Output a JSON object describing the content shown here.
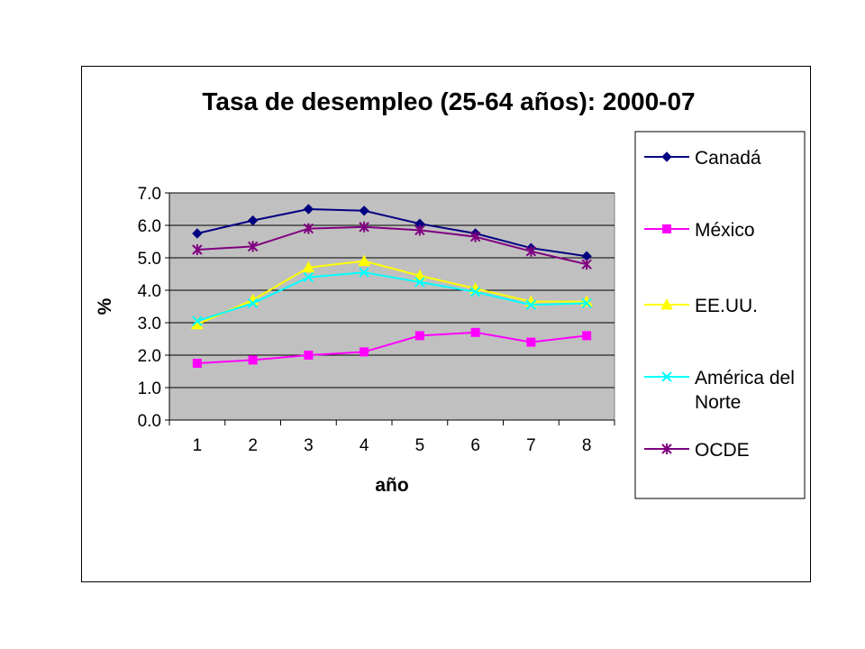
{
  "chart_data": {
    "type": "line",
    "title": "Tasa de desempleo (25-64 años): 2000-07",
    "xlabel": "año",
    "ylabel": "%",
    "x": [
      1,
      2,
      3,
      4,
      5,
      6,
      7,
      8
    ],
    "x_tick_labels": [
      "1",
      "2",
      "3",
      "4",
      "5",
      "6",
      "7",
      "8"
    ],
    "ylim": [
      0,
      7
    ],
    "y_ticks": [
      0,
      1,
      2,
      3,
      4,
      5,
      6,
      7
    ],
    "y_tick_labels": [
      "0.0",
      "1.0",
      "2.0",
      "3.0",
      "4.0",
      "5.0",
      "6.0",
      "7.0"
    ],
    "grid": true,
    "plot_background": "#c0c0c0",
    "legend_position": "right",
    "series": [
      {
        "name": "Canadá",
        "color": "#000080",
        "marker": "diamond",
        "values": [
          5.75,
          6.15,
          6.5,
          6.45,
          6.05,
          5.75,
          5.3,
          5.05
        ]
      },
      {
        "name": "México",
        "color": "#ff00ff",
        "marker": "square",
        "values": [
          1.75,
          1.85,
          2.0,
          2.1,
          2.6,
          2.7,
          2.4,
          2.6
        ]
      },
      {
        "name": "EE.UU.",
        "color": "#ffff00",
        "marker": "triangle",
        "values": [
          2.95,
          3.7,
          4.7,
          4.9,
          4.45,
          4.05,
          3.65,
          3.65
        ]
      },
      {
        "name": "América del Norte",
        "name_lines": [
          "América del",
          "Norte"
        ],
        "color": "#00ffff",
        "marker": "x",
        "values": [
          3.05,
          3.6,
          4.4,
          4.55,
          4.25,
          3.95,
          3.55,
          3.6
        ]
      },
      {
        "name": "OCDE",
        "color": "#800080",
        "marker": "star",
        "values": [
          5.25,
          5.35,
          5.9,
          5.95,
          5.85,
          5.65,
          5.2,
          4.8
        ]
      }
    ]
  }
}
